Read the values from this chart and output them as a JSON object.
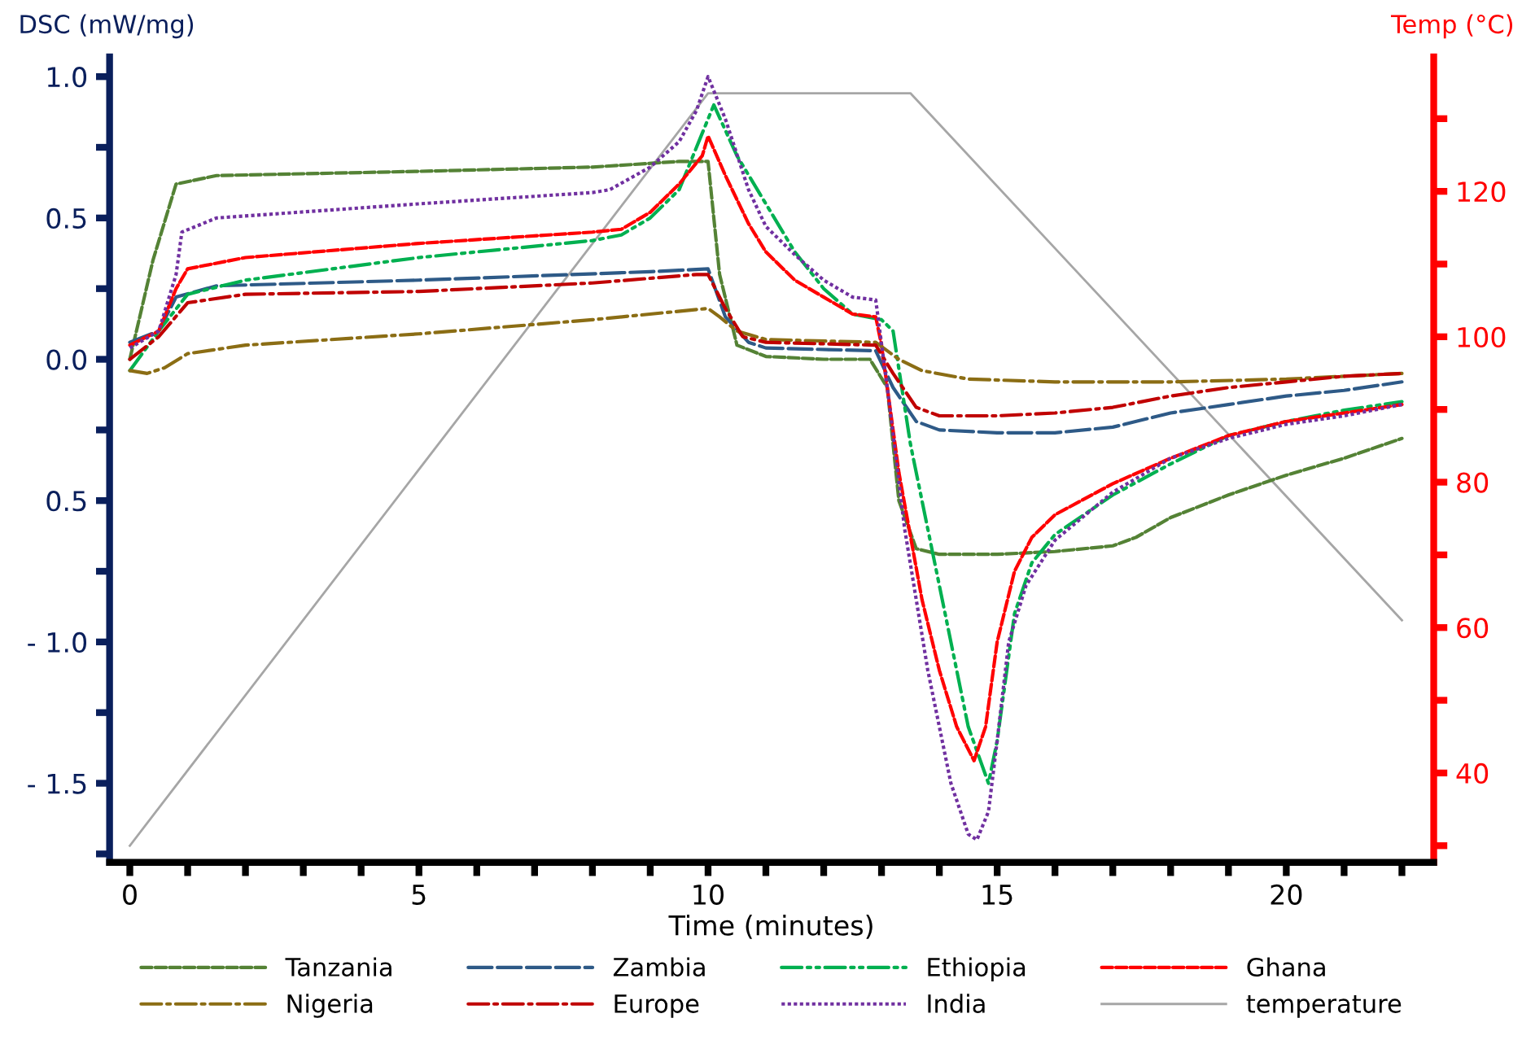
{
  "chart_data": {
    "type": "line",
    "xlabel": "Time (minutes)",
    "ylabel": "DSC (mW/mg)",
    "y2label": "Temp (°C)",
    "xlim": [
      -0.35,
      22.55
    ],
    "xticks": [
      0,
      {
        "value": 1,
        "label": null
      },
      {
        "value": 2,
        "label": null
      },
      {
        "value": 3,
        "label": null
      },
      {
        "value": 4,
        "label": null
      },
      5,
      {
        "value": 6,
        "label": null
      },
      {
        "value": 7,
        "label": null
      },
      {
        "value": 8,
        "label": null
      },
      {
        "value": 9,
        "label": null
      },
      10,
      {
        "value": 11,
        "label": null
      },
      {
        "value": 12,
        "label": null
      },
      {
        "value": 13,
        "label": null
      },
      {
        "value": 14,
        "label": null
      },
      15,
      {
        "value": 16,
        "label": null
      },
      {
        "value": 17,
        "label": null
      },
      {
        "value": 18,
        "label": null
      },
      {
        "value": 19,
        "label": null
      },
      20,
      {
        "value": 21,
        "label": null
      },
      {
        "value": 22,
        "label": null
      }
    ],
    "ylim": [
      -1.78,
      1.07
    ],
    "yticks": [
      {
        "value": -1.75,
        "label": null
      },
      {
        "value": -1.5,
        "label": "- 1.5"
      },
      {
        "value": -1.25,
        "label": null
      },
      {
        "value": -1.0,
        "label": "- 1.0"
      },
      {
        "value": -0.75,
        "label": null
      },
      {
        "value": -0.5,
        "label": "0.5"
      },
      {
        "value": -0.25,
        "label": null
      },
      {
        "value": 0,
        "label": "0.0"
      },
      {
        "value": 0.25,
        "label": null
      },
      {
        "value": 0.5,
        "label": "0.5"
      },
      {
        "value": 0.75,
        "label": null
      },
      {
        "value": 1.0,
        "label": "1.0"
      }
    ],
    "y2lim": [
      27.7,
      138.5
    ],
    "y2ticks": [
      {
        "value": 30,
        "label": null
      },
      40,
      {
        "value": 50,
        "label": null
      },
      60,
      {
        "value": 70,
        "label": null
      },
      80,
      {
        "value": 90,
        "label": null
      },
      100,
      {
        "value": 110,
        "label": null
      },
      120,
      {
        "value": 130,
        "label": null
      }
    ],
    "legend": "bottom",
    "grid": false,
    "series": [
      {
        "name": "Tanzania",
        "color": "#548235",
        "line_style": "dashed",
        "x": [
          0,
          0.4,
          0.8,
          1.5,
          5,
          8,
          9.5,
          10,
          10.2,
          10.5,
          11,
          12,
          12.8,
          13.1,
          13.3,
          13.6,
          14,
          15,
          16,
          17,
          17.4,
          18,
          19,
          20,
          21,
          22
        ],
        "values": [
          0.0,
          0.35,
          0.62,
          0.65,
          0.665,
          0.68,
          0.7,
          0.7,
          0.3,
          0.05,
          0.01,
          0.0,
          0.0,
          -0.1,
          -0.5,
          -0.67,
          -0.69,
          -0.69,
          -0.68,
          -0.66,
          -0.63,
          -0.56,
          -0.48,
          -0.41,
          -0.35,
          -0.28
        ]
      },
      {
        "name": "Zambia",
        "color": "#2e5a87",
        "line_style": "longdash",
        "x": [
          0,
          0.5,
          0.8,
          1.5,
          5,
          9,
          10,
          10.3,
          10.7,
          11,
          12.9,
          13.2,
          13.6,
          14,
          15,
          16,
          17,
          18,
          19,
          20,
          21,
          22
        ],
        "values": [
          0.06,
          0.1,
          0.22,
          0.26,
          0.28,
          0.31,
          0.32,
          0.15,
          0.06,
          0.04,
          0.03,
          -0.1,
          -0.22,
          -0.25,
          -0.26,
          -0.26,
          -0.24,
          -0.19,
          -0.16,
          -0.13,
          -0.11,
          -0.08
        ]
      },
      {
        "name": "Ethiopia",
        "color": "#00b050",
        "line_style": "dashdotdot",
        "x": [
          0,
          0.5,
          1,
          2,
          5,
          8,
          8.5,
          9,
          9.5,
          9.9,
          10.1,
          10.5,
          11,
          11.5,
          12,
          12.5,
          13,
          13.2,
          13.5,
          14,
          14.5,
          14.85,
          15,
          15.3,
          15.6,
          16,
          17,
          18,
          19,
          20,
          21,
          22
        ],
        "values": [
          -0.04,
          0.1,
          0.23,
          0.28,
          0.36,
          0.42,
          0.44,
          0.5,
          0.6,
          0.8,
          0.9,
          0.72,
          0.55,
          0.38,
          0.25,
          0.16,
          0.14,
          0.1,
          -0.3,
          -0.8,
          -1.3,
          -1.5,
          -1.35,
          -0.9,
          -0.72,
          -0.62,
          -0.48,
          -0.37,
          -0.27,
          -0.22,
          -0.18,
          -0.15
        ]
      },
      {
        "name": "Ghana",
        "color": "#ff0000",
        "line_style": "dashed",
        "x": [
          0,
          0.5,
          0.8,
          1,
          2,
          5,
          8,
          8.5,
          9,
          9.5,
          9.9,
          10,
          10.3,
          10.7,
          11,
          11.5,
          12,
          12.5,
          12.9,
          13,
          13.3,
          13.7,
          14,
          14.3,
          14.6,
          14.8,
          15,
          15.3,
          15.6,
          16,
          17,
          18,
          19,
          20,
          21,
          22
        ],
        "values": [
          0.05,
          0.1,
          0.25,
          0.32,
          0.36,
          0.41,
          0.45,
          0.46,
          0.52,
          0.62,
          0.72,
          0.79,
          0.65,
          0.48,
          0.38,
          0.28,
          0.22,
          0.16,
          0.15,
          0.05,
          -0.4,
          -0.85,
          -1.1,
          -1.3,
          -1.42,
          -1.3,
          -1.0,
          -0.75,
          -0.63,
          -0.55,
          -0.44,
          -0.35,
          -0.27,
          -0.22,
          -0.19,
          -0.16
        ]
      },
      {
        "name": "Nigeria",
        "color": "#8b6d14",
        "line_style": "dashdot",
        "x": [
          0,
          0.3,
          0.6,
          1,
          2,
          5,
          8,
          10,
          10.2,
          10.5,
          11,
          12.9,
          13.3,
          13.7,
          14.5,
          16,
          18,
          20,
          22
        ],
        "values": [
          -0.04,
          -0.05,
          -0.03,
          0.02,
          0.05,
          0.09,
          0.14,
          0.18,
          0.15,
          0.1,
          0.07,
          0.06,
          0.0,
          -0.04,
          -0.07,
          -0.08,
          -0.08,
          -0.07,
          -0.05
        ]
      },
      {
        "name": "Europe",
        "color": "#c00000",
        "line_style": "dashdot",
        "x": [
          0,
          0.5,
          1,
          2,
          5,
          8,
          9.8,
          10,
          10.3,
          10.6,
          11,
          12.9,
          13.2,
          13.6,
          14,
          15,
          16,
          17,
          18,
          19,
          20,
          21,
          22
        ],
        "values": [
          0.0,
          0.08,
          0.2,
          0.23,
          0.24,
          0.27,
          0.3,
          0.3,
          0.18,
          0.08,
          0.06,
          0.05,
          -0.05,
          -0.17,
          -0.2,
          -0.2,
          -0.19,
          -0.17,
          -0.13,
          -0.1,
          -0.08,
          -0.06,
          -0.05
        ]
      },
      {
        "name": "India",
        "color": "#7030a0",
        "line_style": "dotted",
        "x": [
          0,
          0.5,
          0.8,
          0.9,
          1.5,
          5,
          8,
          8.3,
          9,
          9.5,
          9.8,
          10,
          10.3,
          10.7,
          11,
          11.5,
          12,
          12.5,
          12.9,
          13.1,
          13.4,
          13.8,
          14.2,
          14.5,
          14.65,
          14.85,
          15,
          15.2,
          15.5,
          16,
          17,
          18,
          19,
          20,
          21,
          22
        ],
        "values": [
          0.04,
          0.1,
          0.3,
          0.45,
          0.5,
          0.55,
          0.59,
          0.6,
          0.68,
          0.77,
          0.88,
          1.0,
          0.85,
          0.6,
          0.47,
          0.37,
          0.28,
          0.22,
          0.21,
          -0.1,
          -0.6,
          -1.1,
          -1.5,
          -1.68,
          -1.7,
          -1.6,
          -1.35,
          -1.0,
          -0.8,
          -0.64,
          -0.47,
          -0.35,
          -0.28,
          -0.23,
          -0.2,
          -0.16
        ]
      },
      {
        "name": "temperature",
        "color": "#a6a6a6",
        "line_style": "solid",
        "axis": "y2",
        "x": [
          0,
          10,
          13.5,
          22
        ],
        "values": [
          30,
          133.5,
          133.5,
          61
        ]
      }
    ]
  }
}
